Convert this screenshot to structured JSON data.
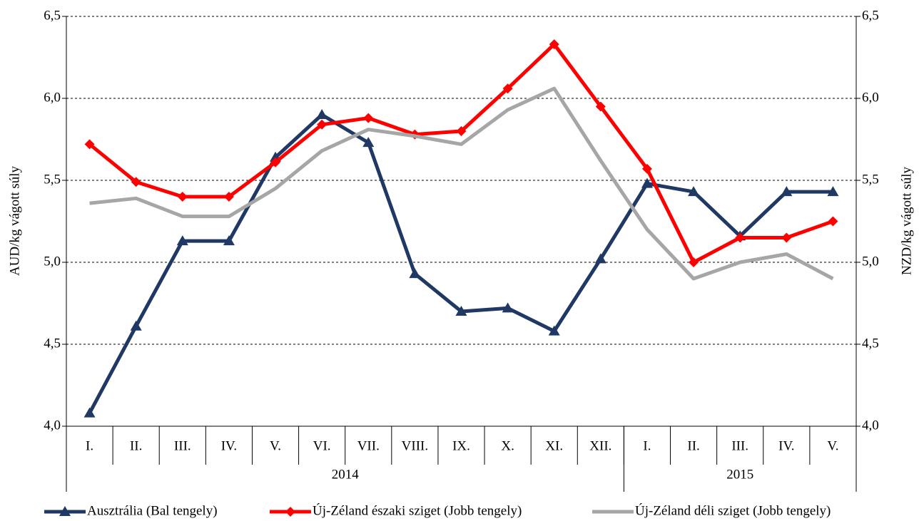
{
  "chart_data": {
    "type": "line",
    "y_label": "AUD/kg vágott súly",
    "y2_label": "NZD/kg vágott súly",
    "category_groups": [
      {
        "label": "2014",
        "categories": [
          "I.",
          "II.",
          "III.",
          "IV.",
          "V.",
          "VI.",
          "VII.",
          "VIII.",
          "IX.",
          "X.",
          "XI.",
          "XII."
        ]
      },
      {
        "label": "2015",
        "categories": [
          "I.",
          "II.",
          "III.",
          "IV.",
          "V."
        ]
      }
    ],
    "ylim": [
      4,
      6.5
    ],
    "yticks": [
      {
        "value": 4,
        "label": "4,0"
      },
      {
        "value": 4.5,
        "label": "4,5"
      },
      {
        "value": 5,
        "label": "5,0"
      },
      {
        "value": 5.5,
        "label": "5,5"
      },
      {
        "value": 6,
        "label": "6,0"
      },
      {
        "value": 6.5,
        "label": "6,5"
      }
    ],
    "y2lim": [
      4,
      6.5
    ],
    "y2ticks": [
      {
        "value": 4,
        "label": "4,0"
      },
      {
        "value": 4.5,
        "label": "4,5"
      },
      {
        "value": 5,
        "label": "5,0"
      },
      {
        "value": 5.5,
        "label": "5,5"
      },
      {
        "value": 6,
        "label": "6,0"
      },
      {
        "value": 6.5,
        "label": "6,5"
      }
    ],
    "grid": true,
    "legend": "bottom",
    "series": [
      {
        "name": "Ausztrália (Bal tengely)",
        "color": "#1f3864",
        "marker": "triangle",
        "axis": "y",
        "values": [
          4.08,
          4.61,
          5.13,
          5.13,
          5.64,
          5.9,
          5.73,
          4.93,
          4.7,
          4.72,
          4.58,
          5.02,
          5.48,
          5.43,
          5.16,
          5.43,
          5.43
        ]
      },
      {
        "name": "Új-Zéland északi sziget (Jobb tengely)",
        "color": "#ff0000",
        "marker": "diamond",
        "axis": "y2",
        "values": [
          5.72,
          5.49,
          5.4,
          5.4,
          5.61,
          5.84,
          5.88,
          5.78,
          5.8,
          6.06,
          6.33,
          5.95,
          5.57,
          5.0,
          5.15,
          5.15,
          5.25
        ]
      },
      {
        "name": "Új-Zéland déli sziget (Jobb tengely)",
        "color": "#a6a6a6",
        "marker": "none",
        "axis": "y2",
        "values": [
          5.36,
          5.39,
          5.28,
          5.28,
          5.45,
          5.68,
          5.81,
          5.77,
          5.72,
          5.93,
          6.06,
          5.62,
          5.2,
          4.9,
          5.0,
          5.05,
          4.9
        ]
      }
    ]
  }
}
